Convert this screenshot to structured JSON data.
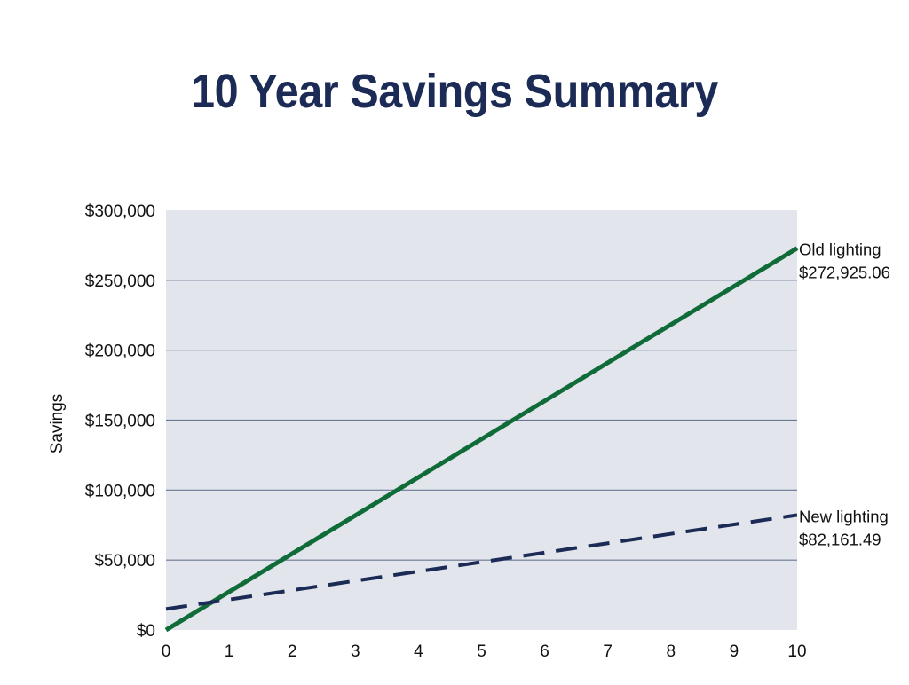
{
  "chart_data": {
    "type": "line",
    "title": "10 Year Savings Summary",
    "ylabel": "Savings",
    "xlabel": "",
    "x": [
      0,
      1,
      2,
      3,
      4,
      5,
      6,
      7,
      8,
      9,
      10
    ],
    "xlim": [
      0,
      10
    ],
    "ylim": [
      0,
      300000
    ],
    "yticks": [
      0,
      50000,
      100000,
      150000,
      200000,
      250000,
      300000
    ],
    "ytick_labels": [
      "$0",
      "$50,000",
      "$100,000",
      "$150,000",
      "$200,000",
      "$250,000",
      "$300,000"
    ],
    "xtick_labels": [
      "0",
      "1",
      "2",
      "3",
      "4",
      "5",
      "6",
      "7",
      "8",
      "9",
      "10"
    ],
    "grid": true,
    "series": [
      {
        "name": "Old lighting",
        "style": "solid",
        "color": "#0f6b38",
        "start": 0,
        "end": 272925.06,
        "end_label": "$272,925.06"
      },
      {
        "name": "New lighting",
        "style": "dashed",
        "color": "#1b2b55",
        "start": 15000,
        "end": 82161.49,
        "end_label": "$82,161.49"
      }
    ],
    "colors": {
      "plot_background": "#e2e5eb",
      "gridline": "#6a7894",
      "title": "#1b2b55"
    }
  }
}
